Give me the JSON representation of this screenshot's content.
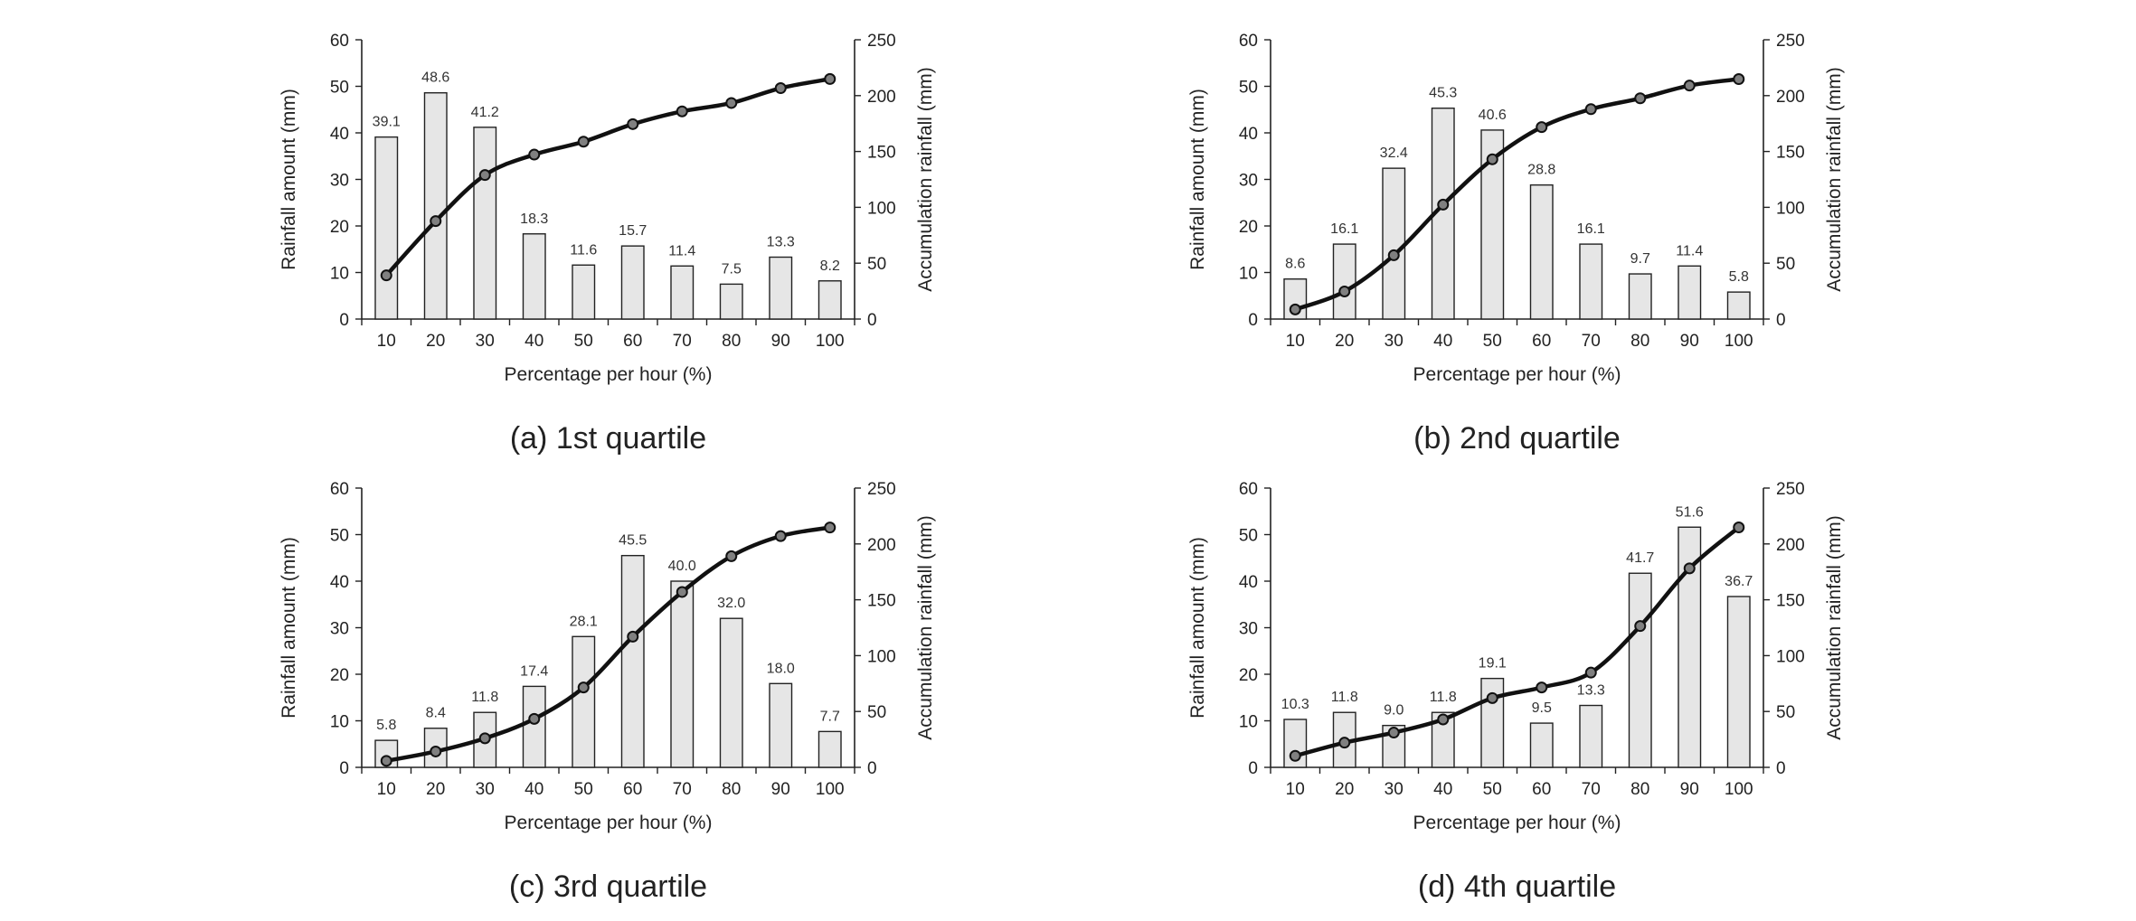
{
  "chart_data": [
    {
      "type": "bar+line",
      "caption": "(a) 1st quartile",
      "xlabel": "Percentage per hour (%)",
      "ylabel": "Rainfall amount (mm)",
      "y2label": "Accumulation rainfall (mm)",
      "categories": [
        "10",
        "20",
        "30",
        "40",
        "50",
        "60",
        "70",
        "80",
        "90",
        "100"
      ],
      "values": [
        39.1,
        48.6,
        41.2,
        18.3,
        11.6,
        15.7,
        11.4,
        7.5,
        13.3,
        8.2
      ],
      "value_labels": [
        "39.1",
        "48.6",
        "41.2",
        "18.3",
        "11.6",
        "15.7",
        "11.4",
        "7.5",
        "13.3",
        "8.2"
      ],
      "accumulation": [
        39.1,
        87.7,
        128.9,
        147.2,
        158.8,
        174.5,
        185.9,
        193.4,
        206.7,
        214.9
      ],
      "ylim": [
        0,
        60
      ],
      "yticks": [
        "0",
        "10",
        "20",
        "30",
        "40",
        "50",
        "60"
      ],
      "y2lim": [
        0,
        250
      ],
      "y2ticks": [
        "0",
        "50",
        "100",
        "150",
        "200",
        "250"
      ]
    },
    {
      "type": "bar+line",
      "caption": "(b) 2nd quartile",
      "xlabel": "Percentage per hour (%)",
      "ylabel": "Rainfall amount (mm)",
      "y2label": "Accumulation rainfall (mm)",
      "categories": [
        "10",
        "20",
        "30",
        "40",
        "50",
        "60",
        "70",
        "80",
        "90",
        "100"
      ],
      "values": [
        8.6,
        16.1,
        32.4,
        45.3,
        40.6,
        28.8,
        16.1,
        9.7,
        11.4,
        5.8
      ],
      "value_labels": [
        "8.6",
        "16.1",
        "32.4",
        "45.3",
        "40.6",
        "28.8",
        "16.1",
        "9.7",
        "11.4",
        "5.8"
      ],
      "accumulation": [
        8.6,
        24.7,
        57.1,
        102.4,
        143.0,
        171.8,
        187.9,
        197.6,
        209.0,
        214.8
      ],
      "ylim": [
        0,
        60
      ],
      "yticks": [
        "0",
        "10",
        "20",
        "30",
        "40",
        "50",
        "60"
      ],
      "y2lim": [
        0,
        250
      ],
      "y2ticks": [
        "0",
        "50",
        "100",
        "150",
        "200",
        "250"
      ]
    },
    {
      "type": "bar+line",
      "caption": "(c) 3rd quartile",
      "xlabel": "Percentage per hour (%)",
      "ylabel": "Rainfall amount (mm)",
      "y2label": "Accumulation rainfall (mm)",
      "categories": [
        "10",
        "20",
        "30",
        "40",
        "50",
        "60",
        "70",
        "80",
        "90",
        "100"
      ],
      "values": [
        5.8,
        8.4,
        11.8,
        17.4,
        28.1,
        45.5,
        40.0,
        32.0,
        18.0,
        7.7
      ],
      "value_labels": [
        "5.8",
        "8.4",
        "11.8",
        "17.4",
        "28.1",
        "45.5",
        "40.0",
        "32.0",
        "18.0",
        "7.7"
      ],
      "accumulation": [
        5.8,
        14.2,
        26.0,
        43.4,
        71.5,
        117.0,
        157.0,
        189.0,
        207.0,
        214.7
      ],
      "ylim": [
        0,
        60
      ],
      "yticks": [
        "0",
        "10",
        "20",
        "30",
        "40",
        "50",
        "60"
      ],
      "y2lim": [
        0,
        250
      ],
      "y2ticks": [
        "0",
        "50",
        "100",
        "150",
        "200",
        "250"
      ]
    },
    {
      "type": "bar+line",
      "caption": "(d) 4th quartile",
      "xlabel": "Percentage per hour (%)",
      "ylabel": "Rainfall amount (mm)",
      "y2label": "Accumulation rainfall (mm)",
      "categories": [
        "10",
        "20",
        "30",
        "40",
        "50",
        "60",
        "70",
        "80",
        "90",
        "100"
      ],
      "values": [
        10.3,
        11.8,
        9.0,
        11.8,
        19.1,
        9.5,
        13.3,
        41.7,
        51.6,
        36.7
      ],
      "value_labels": [
        "10.3",
        "11.8",
        "9.0",
        "11.8",
        "19.1",
        "9.5",
        "13.3",
        "41.7",
        "51.6",
        "36.7"
      ],
      "accumulation": [
        10.3,
        22.1,
        31.1,
        42.9,
        62.0,
        71.5,
        84.8,
        126.5,
        178.1,
        214.8
      ],
      "ylim": [
        0,
        60
      ],
      "yticks": [
        "0",
        "10",
        "20",
        "30",
        "40",
        "50",
        "60"
      ],
      "y2lim": [
        0,
        250
      ],
      "y2ticks": [
        "0",
        "50",
        "100",
        "150",
        "200",
        "250"
      ]
    }
  ]
}
